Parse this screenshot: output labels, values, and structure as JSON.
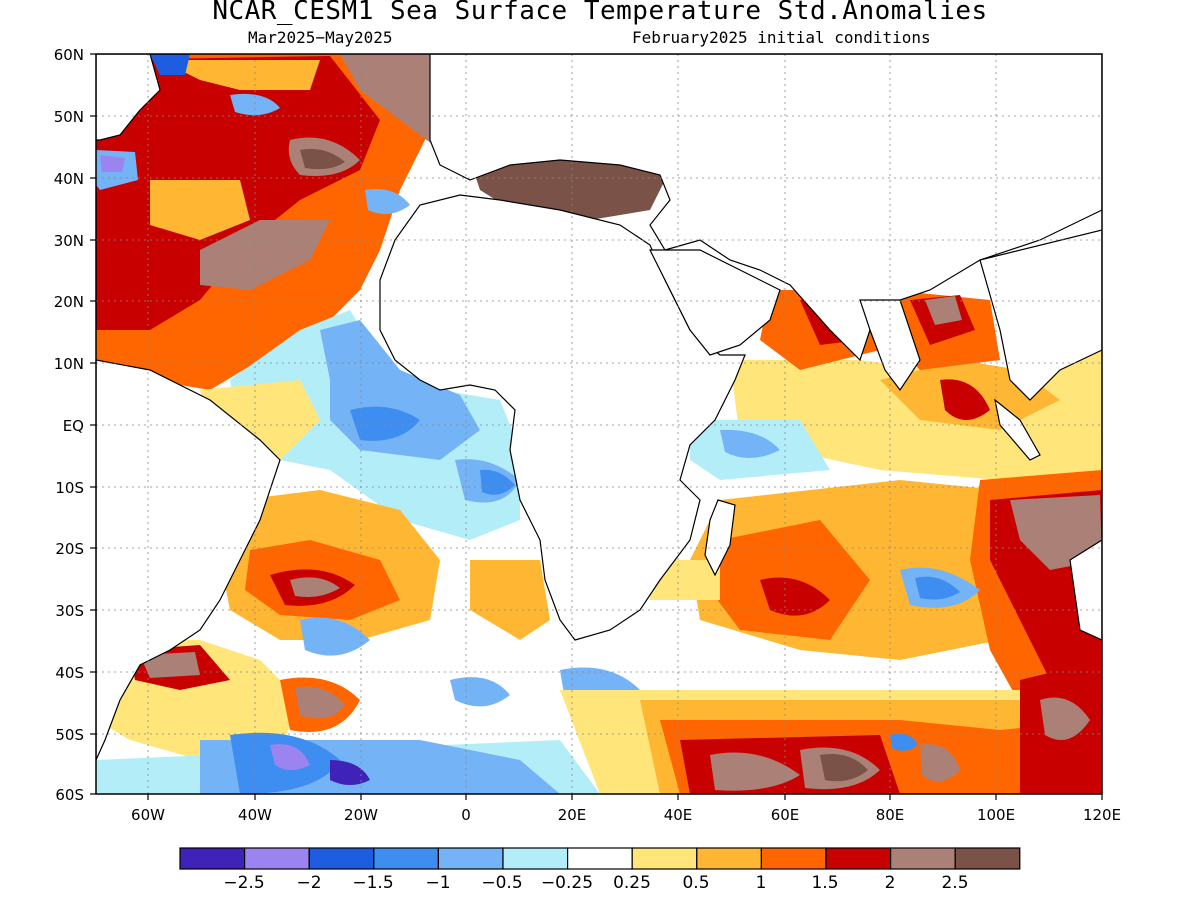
{
  "title": "NCAR_CESM1 Sea Surface Temperature Std.Anomalies",
  "subtitle_left": "Mar2025−May2025",
  "subtitle_right": "February2025 initial conditions",
  "lat_labels": [
    "60N",
    "50N",
    "40N",
    "30N",
    "20N",
    "10N",
    "EQ",
    "10S",
    "20S",
    "30S",
    "40S",
    "50S",
    "60S"
  ],
  "lon_labels": [
    "60W",
    "40W",
    "20W",
    "0",
    "20E",
    "40E",
    "60E",
    "80E",
    "100E",
    "120E"
  ],
  "colorbar": {
    "colors": [
      "#3f22b8",
      "#9b84f0",
      "#1e5de0",
      "#3d8ef0",
      "#74b3f6",
      "#b3eef8",
      "#ffffff",
      "#ffe57a",
      "#ffb733",
      "#ff6600",
      "#c80000",
      "#aa8077",
      "#7a5248"
    ],
    "labels": [
      "−2.5",
      "−2",
      "−1.5",
      "−1",
      "−0.5",
      "−0.25",
      "0.25",
      "0.5",
      "1",
      "1.5",
      "2",
      "2.5"
    ]
  },
  "colors": {
    "land": "#ffffff",
    "coast": "#000000",
    "grid": "#888888"
  }
}
